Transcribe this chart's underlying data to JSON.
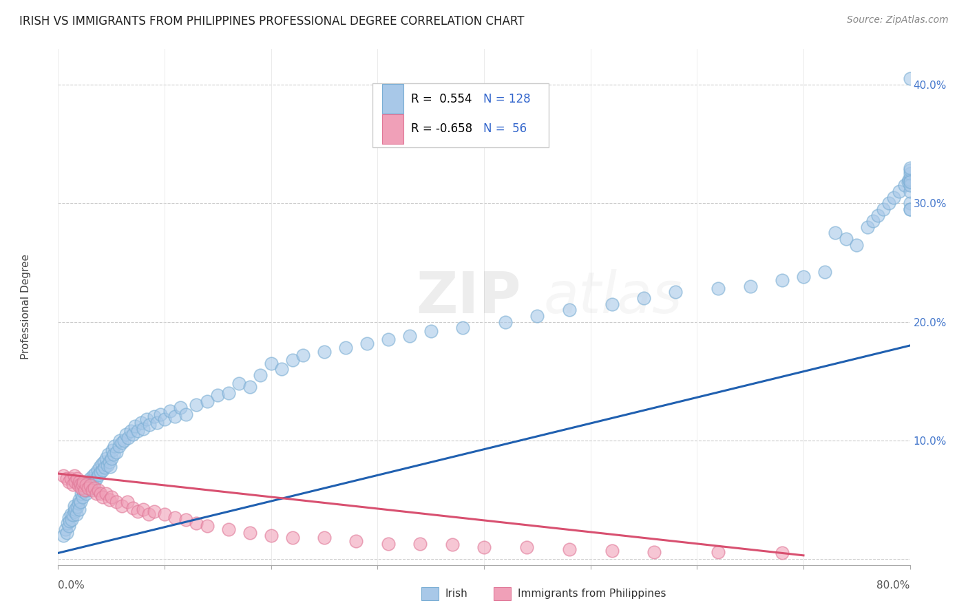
{
  "title": "IRISH VS IMMIGRANTS FROM PHILIPPINES PROFESSIONAL DEGREE CORRELATION CHART",
  "source_text": "Source: ZipAtlas.com",
  "ylabel": "Professional Degree",
  "right_yticks": [
    0.0,
    0.1,
    0.2,
    0.3,
    0.4
  ],
  "right_yticklabels": [
    "",
    "10.0%",
    "20.0%",
    "30.0%",
    "40.0%"
  ],
  "xmin": 0.0,
  "xmax": 0.8,
  "ymin": -0.005,
  "ymax": 0.43,
  "watermark": "ZIPatlas",
  "blue_color": "#a8c8e8",
  "pink_color": "#f0a0b8",
  "blue_edge_color": "#7aaed4",
  "pink_edge_color": "#e07898",
  "blue_line_color": "#2060b0",
  "pink_line_color": "#d85070",
  "blue_trendline_x": [
    0.0,
    0.8
  ],
  "blue_trendline_y": [
    0.005,
    0.18
  ],
  "pink_trendline_x": [
    0.0,
    0.7
  ],
  "pink_trendline_y": [
    0.072,
    0.003
  ],
  "title_fontsize": 12,
  "watermark_fontsize": 60,
  "watermark_alpha": 0.1,
  "legend_r1_text": "R =  0.554",
  "legend_n1_text": "N = 128",
  "legend_r2_text": "R = -0.658",
  "legend_n2_text": "N =  56",
  "irish_x": [
    0.005,
    0.007,
    0.008,
    0.009,
    0.01,
    0.01,
    0.011,
    0.012,
    0.013,
    0.014,
    0.015,
    0.015,
    0.016,
    0.017,
    0.018,
    0.019,
    0.02,
    0.02,
    0.021,
    0.022,
    0.023,
    0.024,
    0.025,
    0.026,
    0.027,
    0.028,
    0.029,
    0.03,
    0.03,
    0.031,
    0.032,
    0.033,
    0.034,
    0.035,
    0.036,
    0.037,
    0.038,
    0.039,
    0.04,
    0.041,
    0.042,
    0.043,
    0.044,
    0.045,
    0.046,
    0.047,
    0.048,
    0.049,
    0.05,
    0.051,
    0.052,
    0.053,
    0.055,
    0.057,
    0.058,
    0.06,
    0.062,
    0.064,
    0.066,
    0.068,
    0.07,
    0.072,
    0.075,
    0.078,
    0.08,
    0.083,
    0.086,
    0.09,
    0.093,
    0.096,
    0.1,
    0.105,
    0.11,
    0.115,
    0.12,
    0.13,
    0.14,
    0.15,
    0.16,
    0.17,
    0.18,
    0.19,
    0.2,
    0.21,
    0.22,
    0.23,
    0.25,
    0.27,
    0.29,
    0.31,
    0.33,
    0.35,
    0.38,
    0.42,
    0.45,
    0.48,
    0.52,
    0.55,
    0.58,
    0.62,
    0.65,
    0.68,
    0.7,
    0.72,
    0.73,
    0.74,
    0.75,
    0.76,
    0.765,
    0.77,
    0.775,
    0.78,
    0.785,
    0.79,
    0.795,
    0.798,
    0.799,
    0.8,
    0.8,
    0.8,
    0.8,
    0.8,
    0.8,
    0.8,
    0.8,
    0.8,
    0.8,
    0.8
  ],
  "irish_y": [
    0.02,
    0.025,
    0.022,
    0.03,
    0.035,
    0.028,
    0.032,
    0.038,
    0.033,
    0.037,
    0.04,
    0.045,
    0.042,
    0.038,
    0.044,
    0.047,
    0.05,
    0.042,
    0.048,
    0.055,
    0.052,
    0.057,
    0.06,
    0.055,
    0.058,
    0.062,
    0.065,
    0.068,
    0.06,
    0.063,
    0.067,
    0.07,
    0.065,
    0.072,
    0.068,
    0.075,
    0.071,
    0.078,
    0.073,
    0.08,
    0.075,
    0.082,
    0.077,
    0.085,
    0.079,
    0.088,
    0.082,
    0.078,
    0.085,
    0.092,
    0.088,
    0.095,
    0.09,
    0.095,
    0.1,
    0.098,
    0.1,
    0.105,
    0.102,
    0.108,
    0.105,
    0.112,
    0.108,
    0.115,
    0.11,
    0.118,
    0.113,
    0.12,
    0.115,
    0.122,
    0.118,
    0.125,
    0.12,
    0.128,
    0.122,
    0.13,
    0.133,
    0.138,
    0.14,
    0.148,
    0.145,
    0.155,
    0.165,
    0.16,
    0.168,
    0.172,
    0.175,
    0.178,
    0.182,
    0.185,
    0.188,
    0.192,
    0.195,
    0.2,
    0.205,
    0.21,
    0.215,
    0.22,
    0.225,
    0.228,
    0.23,
    0.235,
    0.238,
    0.242,
    0.275,
    0.27,
    0.265,
    0.28,
    0.285,
    0.29,
    0.295,
    0.3,
    0.305,
    0.31,
    0.315,
    0.318,
    0.32,
    0.3,
    0.31,
    0.295,
    0.32,
    0.325,
    0.328,
    0.295,
    0.315,
    0.33,
    0.318,
    0.405
  ],
  "phil_x": [
    0.005,
    0.008,
    0.01,
    0.012,
    0.014,
    0.015,
    0.016,
    0.018,
    0.019,
    0.02,
    0.021,
    0.022,
    0.023,
    0.024,
    0.025,
    0.026,
    0.028,
    0.03,
    0.032,
    0.034,
    0.036,
    0.038,
    0.04,
    0.042,
    0.045,
    0.048,
    0.05,
    0.055,
    0.06,
    0.065,
    0.07,
    0.075,
    0.08,
    0.085,
    0.09,
    0.1,
    0.11,
    0.12,
    0.13,
    0.14,
    0.16,
    0.18,
    0.2,
    0.22,
    0.25,
    0.28,
    0.31,
    0.34,
    0.37,
    0.4,
    0.44,
    0.48,
    0.52,
    0.56,
    0.62,
    0.68
  ],
  "phil_y": [
    0.07,
    0.068,
    0.065,
    0.068,
    0.063,
    0.07,
    0.065,
    0.068,
    0.062,
    0.065,
    0.063,
    0.06,
    0.063,
    0.065,
    0.058,
    0.063,
    0.06,
    0.062,
    0.058,
    0.06,
    0.055,
    0.058,
    0.055,
    0.052,
    0.055,
    0.05,
    0.052,
    0.048,
    0.045,
    0.048,
    0.043,
    0.04,
    0.042,
    0.038,
    0.04,
    0.038,
    0.035,
    0.033,
    0.03,
    0.028,
    0.025,
    0.022,
    0.02,
    0.018,
    0.018,
    0.015,
    0.013,
    0.013,
    0.012,
    0.01,
    0.01,
    0.008,
    0.007,
    0.006,
    0.006,
    0.005
  ]
}
